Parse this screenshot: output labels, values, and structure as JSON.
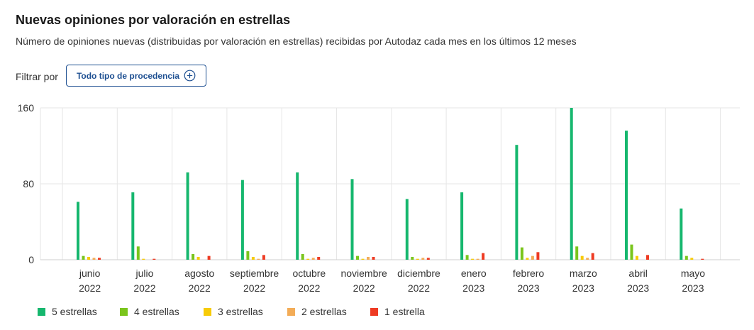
{
  "header": {
    "title": "Nuevas opiniones por valoración en estrellas",
    "subtitle": "Número de opiniones nuevas (distribuidas por valoración en estrellas) recibidas por Autodaz cada mes en los últimos 12 meses"
  },
  "filter": {
    "label": "Filtrar por",
    "button_label": "Todo tipo de procedencia",
    "button_icon": "plus-circle-icon"
  },
  "chart_data": {
    "type": "bar",
    "title": "Nuevas opiniones por valoración en estrellas",
    "xlabel": "",
    "ylabel": "",
    "ylim": [
      0,
      160
    ],
    "yticks": [
      0,
      80,
      160
    ],
    "grid": true,
    "legend_position": "bottom",
    "categories": [
      [
        "junio",
        "2022"
      ],
      [
        "julio",
        "2022"
      ],
      [
        "agosto",
        "2022"
      ],
      [
        "septiembre",
        "2022"
      ],
      [
        "octubre",
        "2022"
      ],
      [
        "noviembre",
        "2022"
      ],
      [
        "diciembre",
        "2022"
      ],
      [
        "enero",
        "2023"
      ],
      [
        "febrero",
        "2023"
      ],
      [
        "marzo",
        "2023"
      ],
      [
        "abril",
        "2023"
      ],
      [
        "mayo",
        "2023"
      ]
    ],
    "series": [
      {
        "name": "5 estrellas",
        "color": "#16b76e",
        "values": [
          61,
          71,
          92,
          84,
          92,
          85,
          64,
          71,
          121,
          160,
          136,
          54
        ]
      },
      {
        "name": "4 estrellas",
        "color": "#7ac51c",
        "values": [
          4,
          14,
          6,
          9,
          6,
          4,
          3,
          5,
          13,
          14,
          16,
          4
        ]
      },
      {
        "name": "3 estrellas",
        "color": "#f7cb08",
        "values": [
          3,
          1,
          3,
          3,
          1,
          1,
          1,
          1,
          2,
          4,
          4,
          2
        ]
      },
      {
        "name": "2 estrellas",
        "color": "#f3ac57",
        "values": [
          2,
          0,
          0,
          1,
          2,
          3,
          2,
          1,
          4,
          2,
          0,
          0
        ]
      },
      {
        "name": "1 estrella",
        "color": "#ee3b23",
        "values": [
          2,
          1,
          4,
          5,
          3,
          3,
          2,
          7,
          8,
          7,
          5,
          1
        ]
      }
    ]
  }
}
